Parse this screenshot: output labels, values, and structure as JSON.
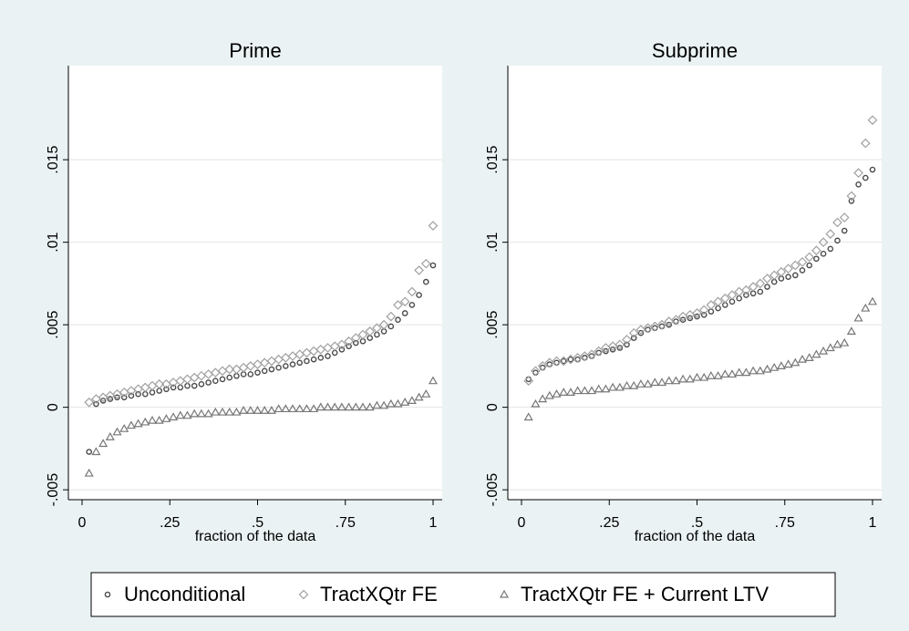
{
  "chart_data": [
    {
      "type": "scatter",
      "title": "Prime",
      "xlabel": "fraction of the data",
      "x": [
        0.02,
        0.04,
        0.06,
        0.08,
        0.1,
        0.12,
        0.14,
        0.16,
        0.18,
        0.2,
        0.22,
        0.24,
        0.26,
        0.28,
        0.3,
        0.32,
        0.34,
        0.36,
        0.38,
        0.4,
        0.42,
        0.44,
        0.46,
        0.48,
        0.5,
        0.52,
        0.54,
        0.56,
        0.58,
        0.6,
        0.62,
        0.64,
        0.66,
        0.68,
        0.7,
        0.72,
        0.74,
        0.76,
        0.78,
        0.8,
        0.82,
        0.84,
        0.86,
        0.88,
        0.9,
        0.92,
        0.94,
        0.96,
        0.98,
        1
      ],
      "xlim": [
        -0.039,
        1.026
      ],
      "ylim": [
        -0.0056,
        0.0207
      ],
      "xticks": [
        0,
        {
          "value": 0.25,
          "label": ".25"
        },
        {
          "value": 0.5,
          "label": ".5"
        },
        {
          "value": 0.75,
          "label": ".75"
        },
        1
      ],
      "yticks": [
        {
          "value": -0.005,
          "label": "-.005"
        },
        0,
        {
          "value": 0.005,
          "label": ".005"
        },
        {
          "value": 0.01,
          "label": ".01"
        },
        {
          "value": 0.015,
          "label": ".015"
        }
      ],
      "grid": true,
      "series": [
        {
          "name": "Unconditional",
          "marker": "circle",
          "color": "#4a4a4a",
          "values": [
            -0.0027,
            0.0002,
            0.0004,
            0.0005,
            0.0006,
            0.0006,
            0.0007,
            0.0008,
            0.0008,
            0.0009,
            0.001,
            0.0011,
            0.0012,
            0.0012,
            0.0013,
            0.0013,
            0.0014,
            0.0015,
            0.0016,
            0.0017,
            0.0018,
            0.0019,
            0.002,
            0.002,
            0.0021,
            0.0022,
            0.0023,
            0.0024,
            0.0025,
            0.0026,
            0.0027,
            0.0028,
            0.0029,
            0.003,
            0.0031,
            0.0033,
            0.0035,
            0.0037,
            0.0039,
            0.004,
            0.0042,
            0.0044,
            0.0046,
            0.0049,
            0.0053,
            0.0057,
            0.0062,
            0.0068,
            0.0076,
            0.0086
          ]
        },
        {
          "name": "TractXQtr FE",
          "marker": "diamond",
          "color": "#a0a0a0",
          "values": [
            0.0003,
            0.0005,
            0.0006,
            0.0007,
            0.0008,
            0.0009,
            0.001,
            0.0011,
            0.0012,
            0.0013,
            0.0014,
            0.0014,
            0.0015,
            0.0016,
            0.0017,
            0.0018,
            0.0019,
            0.002,
            0.0021,
            0.0022,
            0.0023,
            0.0023,
            0.0024,
            0.0025,
            0.0026,
            0.0027,
            0.0028,
            0.0029,
            0.003,
            0.0031,
            0.0032,
            0.0033,
            0.0034,
            0.0035,
            0.0036,
            0.0037,
            0.0038,
            0.004,
            0.0042,
            0.0044,
            0.0046,
            0.0048,
            0.005,
            0.0055,
            0.0062,
            0.0064,
            0.007,
            0.0083,
            0.0087,
            0.011
          ]
        },
        {
          "name": "TractXQtr FE + Current LTV",
          "marker": "triangle",
          "color": "#777777",
          "values": [
            -0.004,
            -0.0027,
            -0.0022,
            -0.0018,
            -0.0015,
            -0.0013,
            -0.0011,
            -0.001,
            -0.0009,
            -0.0008,
            -0.0008,
            -0.0007,
            -0.0006,
            -0.0005,
            -0.0005,
            -0.0004,
            -0.0004,
            -0.0004,
            -0.0003,
            -0.0003,
            -0.0003,
            -0.0003,
            -0.0002,
            -0.0002,
            -0.0002,
            -0.0002,
            -0.0002,
            -0.0001,
            -0.0001,
            -0.0001,
            -0.0001,
            -0.0001,
            -0.0001,
            0,
            0,
            0,
            0,
            0,
            0,
            0,
            0,
            0.0001,
            0.0001,
            0.0002,
            0.0002,
            0.0003,
            0.0004,
            0.0006,
            0.0008,
            0.0016
          ]
        }
      ]
    },
    {
      "type": "scatter",
      "title": "Subprime",
      "xlabel": "fraction of the data",
      "x": [
        0.02,
        0.04,
        0.06,
        0.08,
        0.1,
        0.12,
        0.14,
        0.16,
        0.18,
        0.2,
        0.22,
        0.24,
        0.26,
        0.28,
        0.3,
        0.32,
        0.34,
        0.36,
        0.38,
        0.4,
        0.42,
        0.44,
        0.46,
        0.48,
        0.5,
        0.52,
        0.54,
        0.56,
        0.58,
        0.6,
        0.62,
        0.64,
        0.66,
        0.68,
        0.7,
        0.72,
        0.74,
        0.76,
        0.78,
        0.8,
        0.82,
        0.84,
        0.86,
        0.88,
        0.9,
        0.92,
        0.94,
        0.96,
        0.98,
        1
      ],
      "xlim": [
        -0.039,
        1.026
      ],
      "ylim": [
        -0.0056,
        0.0207
      ],
      "xticks": [
        0,
        {
          "value": 0.25,
          "label": ".25"
        },
        {
          "value": 0.5,
          "label": ".5"
        },
        {
          "value": 0.75,
          "label": ".75"
        },
        1
      ],
      "yticks": [
        {
          "value": -0.005,
          "label": "-.005"
        },
        0,
        {
          "value": 0.005,
          "label": ".005"
        },
        {
          "value": 0.01,
          "label": ".01"
        },
        {
          "value": 0.015,
          "label": ".015"
        }
      ],
      "grid": true,
      "series": [
        {
          "marker": "circle",
          "color": "#4a4a4a",
          "values": [
            0.0017,
            0.0021,
            0.0024,
            0.0026,
            0.0027,
            0.0028,
            0.0029,
            0.0029,
            0.003,
            0.0031,
            0.0033,
            0.0034,
            0.0035,
            0.0036,
            0.0038,
            0.0042,
            0.0045,
            0.0047,
            0.0048,
            0.0049,
            0.005,
            0.0052,
            0.0053,
            0.0054,
            0.0055,
            0.0056,
            0.0058,
            0.006,
            0.0062,
            0.0064,
            0.0066,
            0.0068,
            0.0069,
            0.007,
            0.0073,
            0.0076,
            0.0078,
            0.0079,
            0.008,
            0.0083,
            0.0086,
            0.009,
            0.0093,
            0.0096,
            0.0101,
            0.0107,
            0.0125,
            0.0135,
            0.0139,
            0.0144
          ]
        },
        {
          "marker": "diamond",
          "color": "#a0a0a0",
          "values": [
            0.0016,
            0.0022,
            0.0025,
            0.0027,
            0.0028,
            0.0028,
            0.0029,
            0.003,
            0.0031,
            0.0032,
            0.0034,
            0.0036,
            0.0037,
            0.0038,
            0.0041,
            0.0045,
            0.0047,
            0.0048,
            0.0049,
            0.005,
            0.0052,
            0.0053,
            0.0055,
            0.0056,
            0.0057,
            0.0059,
            0.0062,
            0.0064,
            0.0066,
            0.0068,
            0.007,
            0.0071,
            0.0073,
            0.0075,
            0.0078,
            0.008,
            0.0082,
            0.0084,
            0.0086,
            0.0088,
            0.0091,
            0.0095,
            0.01,
            0.0105,
            0.0112,
            0.0115,
            0.0128,
            0.0142,
            0.016,
            0.0174
          ]
        },
        {
          "marker": "triangle",
          "color": "#777777",
          "values": [
            -0.0006,
            0.0002,
            0.0005,
            0.0007,
            0.0008,
            0.0009,
            0.0009,
            0.001,
            0.001,
            0.001,
            0.0011,
            0.0011,
            0.0012,
            0.0012,
            0.0013,
            0.0013,
            0.0014,
            0.0014,
            0.0015,
            0.0015,
            0.0016,
            0.0016,
            0.0017,
            0.0017,
            0.0018,
            0.0018,
            0.0019,
            0.0019,
            0.002,
            0.002,
            0.0021,
            0.0021,
            0.0022,
            0.0022,
            0.0023,
            0.0024,
            0.0025,
            0.0026,
            0.0027,
            0.0029,
            0.003,
            0.0032,
            0.0034,
            0.0036,
            0.0038,
            0.0039,
            0.0046,
            0.0054,
            0.006,
            0.0064
          ]
        }
      ]
    }
  ]
}
